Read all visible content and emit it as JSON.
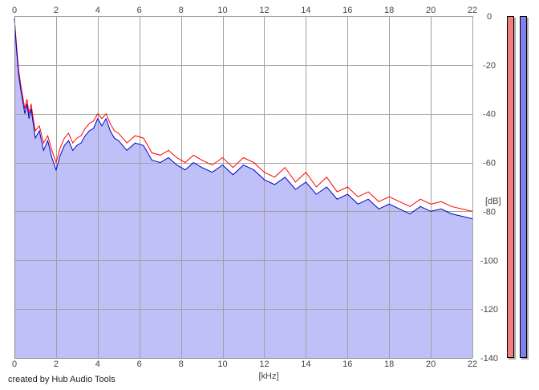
{
  "app": {
    "credit": "created by Hub Audio Tools"
  },
  "meters": [
    {
      "name": "left-channel-level-meter",
      "color": "#f08080"
    },
    {
      "name": "right-channel-level-meter",
      "color": "#8080f0"
    }
  ],
  "chart_data": {
    "type": "line",
    "title": "",
    "xlabel": "[kHz]",
    "ylabel": "[dB]",
    "xlim": [
      0,
      22
    ],
    "ylim": [
      -140,
      0
    ],
    "x_ticks": [
      0,
      2,
      4,
      6,
      8,
      10,
      12,
      14,
      16,
      18,
      20,
      22
    ],
    "y_ticks": [
      0,
      -20,
      -40,
      -60,
      -80,
      -100,
      -120,
      -140
    ],
    "grid": true,
    "fill_color": "#c0c0f8",
    "x": [
      0,
      0.1,
      0.2,
      0.3,
      0.4,
      0.5,
      0.6,
      0.7,
      0.8,
      0.9,
      1.0,
      1.2,
      1.4,
      1.6,
      1.8,
      2.0,
      2.2,
      2.4,
      2.6,
      2.8,
      3.0,
      3.2,
      3.4,
      3.6,
      3.8,
      4.0,
      4.2,
      4.4,
      4.6,
      4.8,
      5.0,
      5.4,
      5.8,
      6.2,
      6.6,
      7.0,
      7.4,
      7.8,
      8.2,
      8.6,
      9.0,
      9.5,
      10.0,
      10.5,
      11.0,
      11.5,
      12.0,
      12.5,
      13.0,
      13.5,
      14.0,
      14.5,
      15.0,
      15.5,
      16.0,
      16.5,
      17.0,
      17.5,
      18.0,
      18.5,
      19.0,
      19.5,
      20.0,
      20.5,
      21.0,
      21.5,
      22.0
    ],
    "series": [
      {
        "name": "",
        "color": "#ff0000",
        "values": [
          -1,
          -12,
          -22,
          -28,
          -33,
          -38,
          -34,
          -40,
          -36,
          -42,
          -47,
          -45,
          -52,
          -49,
          -55,
          -60,
          -54,
          -50,
          -48,
          -52,
          -50,
          -49,
          -46,
          -44,
          -43,
          -40,
          -42,
          -40,
          -44,
          -47,
          -48,
          -52,
          -49,
          -50,
          -56,
          -57,
          -55,
          -58,
          -60,
          -57,
          -59,
          -61,
          -58,
          -62,
          -58,
          -60,
          -64,
          -66,
          -62,
          -68,
          -64,
          -70,
          -66,
          -72,
          -70,
          -74,
          -72,
          -76,
          -74,
          -76,
          -78,
          -75,
          -77,
          -76,
          -78,
          -79,
          -80
        ]
      },
      {
        "name": "",
        "color": "#0000cc",
        "values": [
          -1,
          -14,
          -24,
          -30,
          -35,
          -40,
          -36,
          -42,
          -38,
          -44,
          -50,
          -47,
          -55,
          -51,
          -58,
          -63,
          -57,
          -53,
          -51,
          -55,
          -53,
          -52,
          -49,
          -47,
          -46,
          -42,
          -45,
          -42,
          -47,
          -50,
          -51,
          -55,
          -52,
          -53,
          -59,
          -60,
          -58,
          -61,
          -63,
          -60,
          -62,
          -64,
          -61,
          -65,
          -61,
          -63,
          -67,
          -69,
          -66,
          -71,
          -68,
          -73,
          -70,
          -75,
          -73,
          -77,
          -75,
          -79,
          -77,
          -79,
          -81,
          -78,
          -80,
          -79,
          -81,
          -82,
          -83
        ]
      }
    ]
  }
}
